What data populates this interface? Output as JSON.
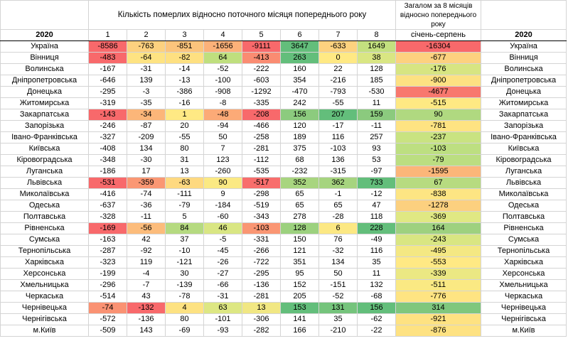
{
  "header": {
    "title": "Кількість померлих відносно поточного місяця попереднього року",
    "summary_title": "Загалом за 8 місяців відносно попереднього року",
    "year_label_left": "2020",
    "year_label_right": "2020",
    "months": [
      "1",
      "2",
      "3",
      "4",
      "5",
      "6",
      "7",
      "8"
    ],
    "summary_label": "січень-серпень"
  },
  "rows": [
    {
      "region": "Україна",
      "values": [
        -8586,
        -763,
        -851,
        -1656,
        -9111,
        3647,
        -633,
        1649
      ],
      "total": -16304,
      "colored": true,
      "colors": [
        "#f8696b",
        "#fdd17f",
        "#fcc47c",
        "#fcb179",
        "#f8696b",
        "#63be7b",
        "#fdd27f",
        "#c3e07f"
      ],
      "total_color": "#f8696b"
    },
    {
      "region": "Вінниця",
      "values": [
        -483,
        -64,
        -82,
        64,
        -413,
        263,
        0,
        38
      ],
      "total": -677,
      "colored": true,
      "colors": [
        "#f8696b",
        "#fee382",
        "#fee081",
        "#bfdf7e",
        "#fa8c72",
        "#63be7b",
        "#ffe984",
        "#d9e683"
      ],
      "total_color": "#fdd17f"
    },
    {
      "region": "Волинська",
      "values": [
        -167,
        -31,
        -14,
        -52,
        -222,
        160,
        22,
        128
      ],
      "total": -176
    },
    {
      "region": "Дніпропетровська",
      "values": [
        -646,
        139,
        -13,
        -100,
        -603,
        354,
        -216,
        185
      ],
      "total": -900
    },
    {
      "region": "Донецька",
      "values": [
        -295,
        -3,
        -386,
        -908,
        -1292,
        -470,
        -793,
        -530
      ],
      "total": -4677,
      "total_color": "#f8786e"
    },
    {
      "region": "Житомирська",
      "values": [
        -319,
        -35,
        -16,
        -8,
        -335,
        242,
        -55,
        11
      ],
      "total": -515
    },
    {
      "region": "Закарпатська",
      "values": [
        -143,
        -34,
        1,
        -48,
        -208,
        156,
        207,
        159
      ],
      "total": 90,
      "colored": true,
      "colors": [
        "#f8696b",
        "#fcb679",
        "#ffe984",
        "#fcaa77",
        "#f8696b",
        "#8ccb7e",
        "#63be7b",
        "#8bca7e"
      ],
      "total_color": "#b0d980"
    },
    {
      "region": "Запорізька",
      "values": [
        -246,
        -87,
        20,
        -94,
        -466,
        120,
        -17,
        -11
      ],
      "total": -781
    },
    {
      "region": "Івано-Франківська",
      "values": [
        -327,
        -209,
        -55,
        50,
        -258,
        189,
        116,
        257
      ],
      "total": -237
    },
    {
      "region": "Київська",
      "values": [
        -408,
        134,
        80,
        7,
        -281,
        375,
        -103,
        93
      ],
      "total": -103
    },
    {
      "region": "Кіровоградська",
      "values": [
        -348,
        -30,
        31,
        123,
        -112,
        68,
        136,
        53
      ],
      "total": -79
    },
    {
      "region": "Луганська",
      "values": [
        -186,
        17,
        13,
        -260,
        -535,
        -232,
        -315,
        -97
      ],
      "total": -1595
    },
    {
      "region": "Львівська",
      "values": [
        -531,
        -359,
        -63,
        90,
        -517,
        352,
        362,
        733
      ],
      "total": 67,
      "colored": true,
      "colors": [
        "#f8696b",
        "#fa9773",
        "#fed980",
        "#fbe983",
        "#f86e6c",
        "#a8d57f",
        "#a6d47f",
        "#63be7b"
      ],
      "total_color": "#b7db80"
    },
    {
      "region": "Миколаївська",
      "values": [
        -416,
        -74,
        -111,
        9,
        -298,
        65,
        -1,
        -12
      ],
      "total": -838
    },
    {
      "region": "Одеська",
      "values": [
        -637,
        -36,
        -79,
        -184,
        -519,
        65,
        65,
        47
      ],
      "total": -1278
    },
    {
      "region": "Полтавська",
      "values": [
        -328,
        -11,
        5,
        -60,
        -343,
        278,
        -28,
        118
      ],
      "total": -369
    },
    {
      "region": "Рівненська",
      "values": [
        -169,
        -56,
        84,
        46,
        -103,
        128,
        6,
        228
      ],
      "total": 164,
      "colored": true,
      "colors": [
        "#f8696b",
        "#fcbc7b",
        "#b5da80",
        "#d9e683",
        "#fa9673",
        "#9cd17e",
        "#fce883",
        "#63be7b"
      ],
      "total_color": "#9ed17f"
    },
    {
      "region": "Сумська",
      "values": [
        -163,
        42,
        37,
        -5,
        -331,
        150,
        76,
        -49
      ],
      "total": -243
    },
    {
      "region": "Тернопільська",
      "values": [
        -287,
        -92,
        -10,
        -45,
        -266,
        121,
        -32,
        116
      ],
      "total": -495
    },
    {
      "region": "Харківська",
      "values": [
        -323,
        119,
        -121,
        -26,
        -722,
        351,
        134,
        35
      ],
      "total": -553
    },
    {
      "region": "Херсонська",
      "values": [
        -199,
        -4,
        30,
        -27,
        -295,
        95,
        50,
        11
      ],
      "total": -339
    },
    {
      "region": "Хмельницька",
      "values": [
        -296,
        -7,
        -139,
        -66,
        -136,
        152,
        -151,
        132
      ],
      "total": -511
    },
    {
      "region": "Черкаська",
      "values": [
        -514,
        43,
        -78,
        -31,
        -281,
        205,
        -52,
        -68
      ],
      "total": -776
    },
    {
      "region": "Чернівецька",
      "values": [
        -74,
        -132,
        4,
        63,
        13,
        153,
        131,
        156
      ],
      "total": 314,
      "colored": true,
      "colors": [
        "#fa9273",
        "#f8696b",
        "#fde282",
        "#dde783",
        "#f1e783",
        "#63be7b",
        "#75c47c",
        "#63be7b"
      ],
      "total_color": "#7fc77d"
    },
    {
      "region": "Чернігівська",
      "values": [
        -572,
        -136,
        80,
        -101,
        -306,
        141,
        35,
        -62
      ],
      "total": -921
    },
    {
      "region": "м.Київ",
      "values": [
        -509,
        143,
        -69,
        -93,
        -282,
        166,
        -210,
        -22
      ],
      "total": -876
    }
  ],
  "total_colors": {
    "Волинська": "#d7e582",
    "Дніпропетровська": "#fde182",
    "Житомирська": "#fee983",
    "Запорізька": "#fee382",
    "Івано-Франківська": "#c9e381",
    "Київська": "#bddf81",
    "Кіровоградська": "#bbde81",
    "Луганська": "#fbb679",
    "Миколаївська": "#fde583",
    "Одеська": "#fcd07f",
    "Полтавська": "#e0e883",
    "Сумська": "#d9e682",
    "Тернопільська": "#f4e883",
    "Харківська": "#ffe984",
    "Херсонська": "#ebe883",
    "Хмельницька": "#fae983",
    "Черкаська": "#fee482",
    "Чернігівська": "#fee282",
    "м.Київ": "#fee282"
  }
}
